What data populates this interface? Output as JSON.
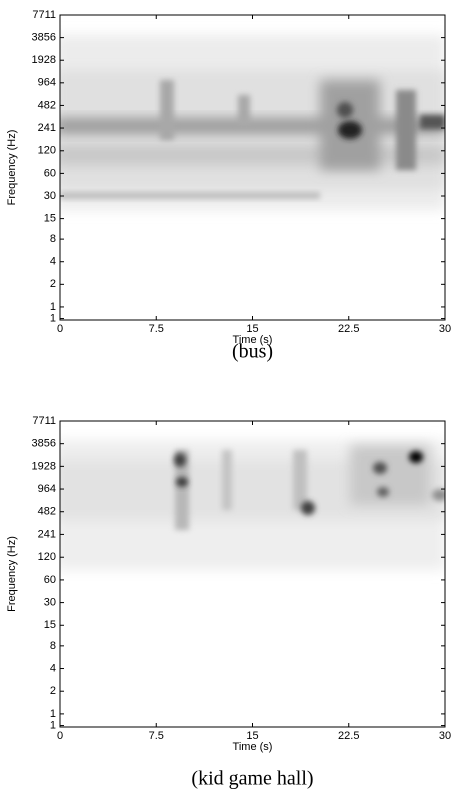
{
  "chart_data": [
    {
      "type": "spectrogram",
      "caption": "(bus)",
      "xlabel": "Time (s)",
      "ylabel": "Frequency (Hz)",
      "xlim": [
        0,
        30
      ],
      "xticks": [
        0,
        7.5,
        15,
        22.5,
        30
      ],
      "ylim": [
        0.67,
        7711
      ],
      "log_y": true,
      "yticks": [
        {
          "value": 0.7,
          "label": "1"
        },
        1,
        2,
        4,
        8,
        15,
        30,
        60,
        120,
        241,
        482,
        964,
        1928,
        3856,
        7711
      ]
    },
    {
      "type": "spectrogram",
      "caption": "(kid game hall)",
      "xlabel": "Time (s)",
      "ylabel": "Frequency (Hz)",
      "xlim": [
        0,
        30
      ],
      "xticks": [
        0,
        7.5,
        15,
        22.5,
        30
      ],
      "ylim": [
        0.67,
        7711
      ],
      "log_y": true,
      "yticks": [
        {
          "value": 0.7,
          "label": "1"
        },
        1,
        2,
        4,
        8,
        15,
        30,
        60,
        120,
        241,
        482,
        964,
        1928,
        3856,
        7711
      ]
    }
  ]
}
